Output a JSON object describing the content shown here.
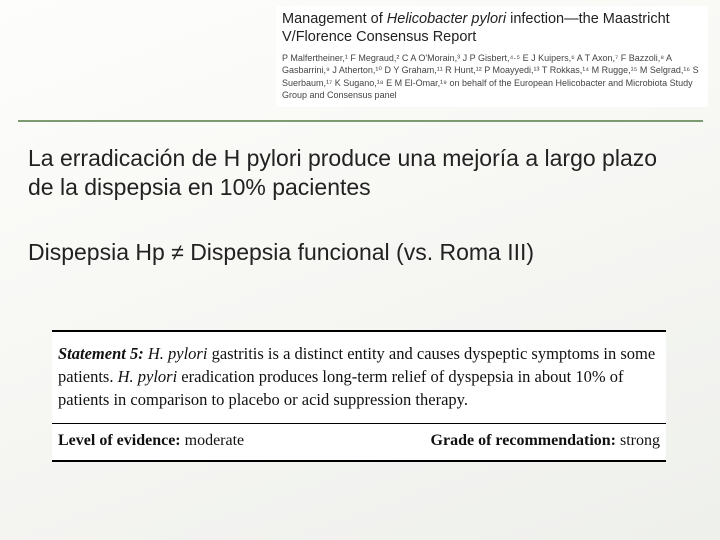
{
  "citation": {
    "title_pre": "Management of ",
    "title_italic": "Helicobacter pylori",
    "title_post": " infection—the Maastricht V/Florence Consensus Report",
    "authors": "P Malfertheiner,¹ F Megraud,² C A O'Morain,³ J P Gisbert,⁴·⁵ E J Kuipers,⁶ A T Axon,⁷ F Bazzoli,⁸ A Gasbarrini,⁹ J Atherton,¹⁰ D Y Graham,¹¹ R Hunt,¹² P Moayyedi,¹³ T Rokkas,¹⁴ M Rugge,¹⁵ M Selgrad,¹⁶ S Suerbaum,¹⁷ K Sugano,¹⁸ E M El-Omar,¹⁹ on behalf of the European Helicobacter and Microbiota Study Group and Consensus panel"
  },
  "main": {
    "para1": "La erradicación de H pylori produce una mejoría a largo plazo de la dispepsia en 10% pacientes",
    "para2": "Dispepsia Hp ≠  Dispepsia funcional (vs. Roma III)"
  },
  "statement": {
    "lead_bold": "Statement 5:",
    "lead_ital": " H. pylori",
    "body": " gastritis is a distinct entity and causes dyspeptic symptoms in some patients. ",
    "body_ital2": "H. pylori",
    "body2": " eradication produces long-term relief of dyspepsia in about 10% of patients in comparison to placebo or acid suppression therapy.",
    "evidence_label": "Level of evidence: ",
    "evidence_value": "moderate",
    "grade_label": "Grade of recommendation: ",
    "grade_value": "strong"
  },
  "colors": {
    "accent": "#7d9b72",
    "text": "#222222",
    "bg_white": "#ffffff"
  }
}
